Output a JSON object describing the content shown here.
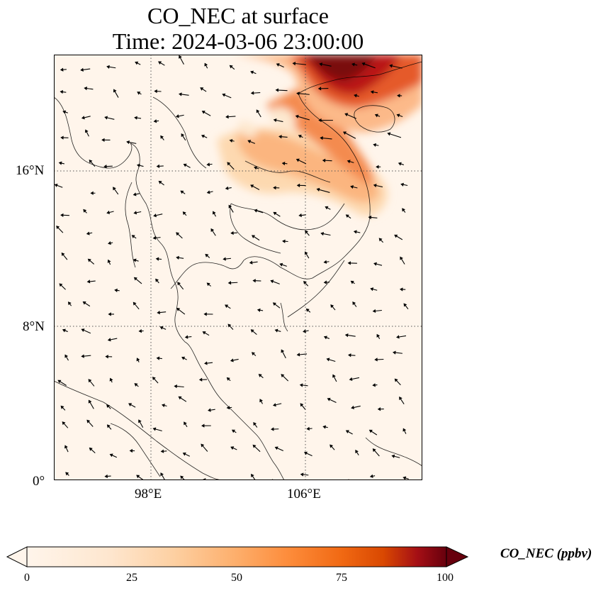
{
  "title": {
    "line1": "CO_NEC at surface",
    "line2": "Time: 2024-03-06 23:00:00"
  },
  "axes": {
    "y_ticks": [
      "16°N",
      "8°N",
      "0°"
    ],
    "x_ticks": [
      "98°E",
      "106°E"
    ]
  },
  "colorbar": {
    "label": "CO_NEC (ppbv)",
    "ticks": [
      "0",
      "25",
      "50",
      "75",
      "100"
    ],
    "range": [
      0,
      100
    ],
    "extend": "both",
    "colormap": [
      "#fff5eb",
      "#fdd0a2",
      "#fd8d3c",
      "#d94801",
      "#a50f15",
      "#67000d"
    ]
  },
  "map": {
    "projection": "PlateCarree",
    "lon_range": [
      93,
      112
    ],
    "lat_range": [
      0,
      22
    ],
    "gridlines": "dotted",
    "background_color": "#fff5eb",
    "plume_region": "northern Vietnam / Laos / Gulf of Tonkin",
    "wind_vectors": true
  }
}
